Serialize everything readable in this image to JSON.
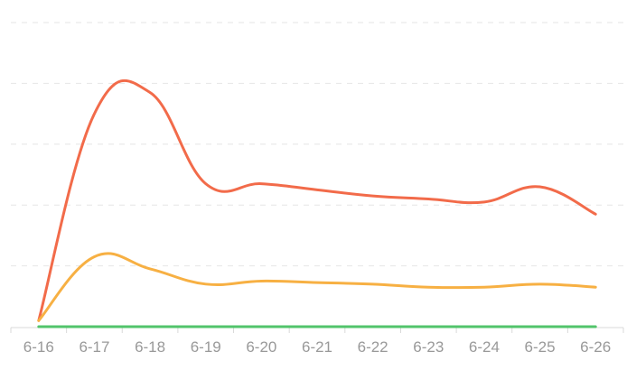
{
  "chart_data": {
    "type": "line",
    "title": "",
    "xlabel": "",
    "ylabel": "",
    "categories": [
      "6-16",
      "6-17",
      "6-18",
      "6-19",
      "6-20",
      "6-21",
      "6-22",
      "6-23",
      "6-24",
      "6-25",
      "6-26"
    ],
    "ylim": [
      0,
      100
    ],
    "grid": true,
    "smooth": true,
    "series": [
      {
        "color": "#f26b4a",
        "values": [
          2,
          70,
          77,
          47,
          47,
          45,
          43,
          42,
          41,
          46,
          37
        ]
      },
      {
        "color": "#f7b043",
        "values": [
          2,
          23,
          19,
          14,
          15,
          14.5,
          14,
          13,
          13,
          14,
          13
        ]
      },
      {
        "color": "#52c46b",
        "values": [
          0,
          0,
          0,
          0,
          0,
          0,
          0,
          0,
          0,
          0,
          0
        ]
      }
    ]
  }
}
